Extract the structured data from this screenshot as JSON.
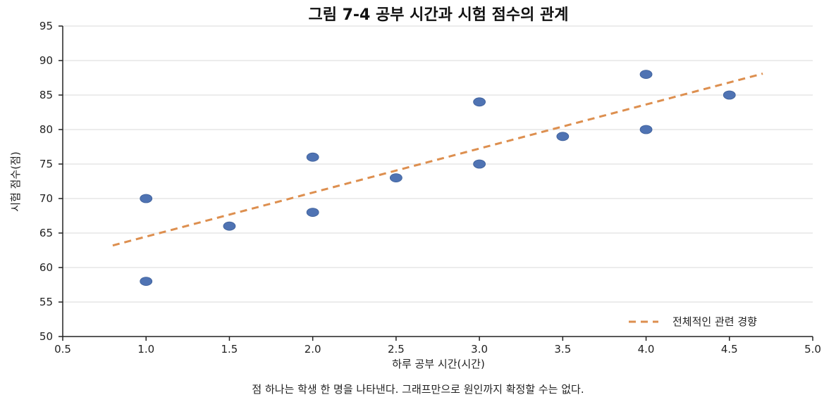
{
  "chart_data": {
    "type": "scatter",
    "title": "그림 7-4  공부 시간과 시험 점수의 관계",
    "xlabel": "하루 공부 시간(시간)",
    "ylabel": "시험 점수(점)",
    "xlim": [
      0.5,
      5.0
    ],
    "ylim": [
      50,
      95
    ],
    "xticks": [
      0.5,
      1.0,
      1.5,
      2.0,
      2.5,
      3.0,
      3.5,
      4.0,
      4.5,
      5.0
    ],
    "xtick_labels": [
      "0.5",
      "1.0",
      "1.5",
      "2.0",
      "2.5",
      "3.0",
      "3.5",
      "4.0",
      "4.5",
      "5.0"
    ],
    "yticks": [
      50,
      55,
      60,
      65,
      70,
      75,
      80,
      85,
      90,
      95
    ],
    "ytick_labels": [
      "50",
      "55",
      "60",
      "65",
      "70",
      "75",
      "80",
      "85",
      "90",
      "95"
    ],
    "grid": "horizontal",
    "points": [
      {
        "x": 1.0,
        "y": 70
      },
      {
        "x": 1.0,
        "y": 58
      },
      {
        "x": 1.5,
        "y": 66
      },
      {
        "x": 2.0,
        "y": 76
      },
      {
        "x": 2.0,
        "y": 68
      },
      {
        "x": 2.5,
        "y": 73
      },
      {
        "x": 3.0,
        "y": 84
      },
      {
        "x": 3.0,
        "y": 75
      },
      {
        "x": 3.5,
        "y": 79
      },
      {
        "x": 4.0,
        "y": 88
      },
      {
        "x": 4.0,
        "y": 80
      },
      {
        "x": 4.5,
        "y": 85
      }
    ],
    "point_color": "#4f73b3",
    "trend_line": {
      "name": "전체적인 관련 경향",
      "x": [
        0.8,
        4.7
      ],
      "y": [
        63.2,
        88.1
      ],
      "color": "#dd8f4f",
      "style": "dashed"
    },
    "legend_position": "bottom-right",
    "caption": "점 하나는 학생 한 명을 나타낸다. 그래프만으로 원인까지 확정할 수는 없다."
  }
}
